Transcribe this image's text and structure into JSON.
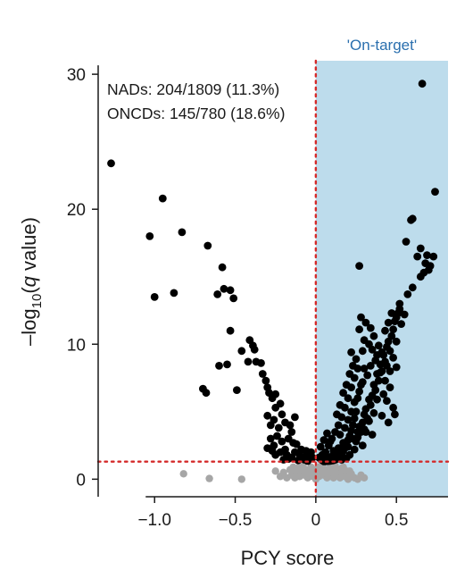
{
  "chart_data": {
    "type": "scatter",
    "xlabel": "PCY score",
    "ylabel_parts": {
      "pre": "–log",
      "sub": "10",
      "open": "(",
      "q": "q",
      "post": " value)"
    },
    "xlim": [
      -1.35,
      0.82
    ],
    "ylim": [
      -1.3,
      31
    ],
    "xticks": [
      -1.0,
      -0.5,
      0,
      0.5
    ],
    "xtick_labels": [
      "−1.0",
      "−0.5",
      "0",
      "0.5"
    ],
    "yticks": [
      0,
      10,
      20,
      30
    ],
    "ytick_labels": [
      "0",
      "10",
      "20",
      "30"
    ],
    "region_label": "'On-target'",
    "region_x_start": 0,
    "threshold_x": 0,
    "threshold_y": 1.3,
    "annotations": [
      "NADs: 204/1809 (11.3%)",
      "ONCDs: 145/780 (18.6%)"
    ],
    "colors": {
      "significant": "#000000",
      "nonsignificant": "#a6a6a6",
      "region": "#bddcec",
      "threshold": "#d42a2a",
      "region_text": "#2a6fae"
    },
    "series": [
      {
        "key": "significant",
        "points": [
          [
            -1.27,
            23.4
          ],
          [
            -0.95,
            20.8
          ],
          [
            -1.03,
            18.0
          ],
          [
            -0.83,
            18.3
          ],
          [
            -0.67,
            17.3
          ],
          [
            -0.58,
            15.7
          ],
          [
            -0.53,
            14.0
          ],
          [
            -0.57,
            14.1
          ],
          [
            -0.51,
            13.4
          ],
          [
            -0.61,
            13.7
          ],
          [
            -1.0,
            13.5
          ],
          [
            -0.88,
            13.8
          ],
          [
            -0.53,
            11.0
          ],
          [
            -0.6,
            8.4
          ],
          [
            -0.55,
            8.5
          ],
          [
            -0.46,
            9.5
          ],
          [
            -0.41,
            10.3
          ],
          [
            -0.39,
            9.9
          ],
          [
            -0.38,
            9.6
          ],
          [
            -0.42,
            8.7
          ],
          [
            -0.37,
            8.7
          ],
          [
            -0.34,
            8.6
          ],
          [
            -0.49,
            6.6
          ],
          [
            -0.7,
            6.7
          ],
          [
            -0.68,
            6.4
          ],
          [
            -0.33,
            7.8
          ],
          [
            -0.31,
            7.3
          ],
          [
            -0.3,
            6.8
          ],
          [
            -0.29,
            6.4
          ],
          [
            -0.27,
            6.0
          ],
          [
            -0.25,
            6.3
          ],
          [
            -0.3,
            4.7
          ],
          [
            -0.25,
            5.3
          ],
          [
            -0.22,
            5.6
          ],
          [
            -0.21,
            4.8
          ],
          [
            -0.26,
            4.4
          ],
          [
            -0.28,
            4.0
          ],
          [
            -0.23,
            3.8
          ],
          [
            -0.19,
            4.2
          ],
          [
            -0.24,
            3.2
          ],
          [
            -0.28,
            3.0
          ],
          [
            -0.21,
            2.8
          ],
          [
            -0.26,
            2.5
          ],
          [
            -0.3,
            2.3
          ],
          [
            -0.19,
            2.2
          ],
          [
            -0.17,
            3.0
          ],
          [
            -0.15,
            3.5
          ],
          [
            -0.14,
            2.7
          ],
          [
            -0.13,
            2.0
          ],
          [
            -0.12,
            2.6
          ],
          [
            -0.22,
            2.0
          ],
          [
            -0.18,
            1.8
          ],
          [
            -0.1,
            1.8
          ],
          [
            -0.09,
            2.2
          ],
          [
            -0.08,
            1.6
          ],
          [
            -0.06,
            2.1
          ],
          [
            -0.05,
            1.7
          ],
          [
            -0.04,
            1.5
          ],
          [
            -0.03,
            2.0
          ],
          [
            -0.15,
            1.6
          ],
          [
            -0.25,
            1.8
          ],
          [
            -0.27,
            2.1
          ],
          [
            -0.16,
            4.0
          ],
          [
            -0.13,
            4.6
          ],
          [
            -0.17,
            1.5
          ],
          [
            -0.11,
            1.4
          ],
          [
            -0.07,
            1.45
          ],
          [
            -0.02,
            1.6
          ],
          [
            -0.2,
            1.45
          ],
          [
            -0.05,
            1.35
          ],
          [
            0.66,
            29.3
          ],
          [
            0.74,
            21.3
          ],
          [
            0.6,
            19.3
          ],
          [
            0.59,
            19.2
          ],
          [
            0.56,
            17.6
          ],
          [
            0.65,
            17.1
          ],
          [
            0.69,
            16.6
          ],
          [
            0.73,
            16.5
          ],
          [
            0.68,
            16.0
          ],
          [
            0.71,
            15.8
          ],
          [
            0.7,
            15.5
          ],
          [
            0.67,
            15.3
          ],
          [
            0.63,
            16.5
          ],
          [
            0.65,
            15.0
          ],
          [
            0.6,
            14.2
          ],
          [
            0.57,
            13.7
          ],
          [
            0.52,
            12.6
          ],
          [
            0.51,
            12.3
          ],
          [
            0.5,
            12.0
          ],
          [
            0.49,
            11.7
          ],
          [
            0.53,
            11.5
          ],
          [
            0.48,
            11.1
          ],
          [
            0.47,
            10.6
          ],
          [
            0.45,
            10.2
          ],
          [
            0.44,
            9.8
          ],
          [
            0.46,
            9.5
          ],
          [
            0.42,
            9.2
          ],
          [
            0.43,
            8.7
          ],
          [
            0.4,
            8.5
          ],
          [
            0.41,
            8.0
          ],
          [
            0.38,
            7.8
          ],
          [
            0.39,
            7.3
          ],
          [
            0.36,
            7.0
          ],
          [
            0.37,
            6.6
          ],
          [
            0.35,
            6.2
          ],
          [
            0.33,
            5.9
          ],
          [
            0.34,
            5.5
          ],
          [
            0.31,
            5.2
          ],
          [
            0.3,
            4.8
          ],
          [
            0.32,
            4.5
          ],
          [
            0.29,
            4.2
          ],
          [
            0.27,
            3.9
          ],
          [
            0.28,
            3.5
          ],
          [
            0.26,
            3.1
          ],
          [
            0.25,
            2.8
          ],
          [
            0.27,
            15.8
          ],
          [
            0.29,
            9.5
          ],
          [
            0.3,
            8.2
          ],
          [
            0.28,
            7.0
          ],
          [
            0.26,
            6.0
          ],
          [
            0.25,
            5.0
          ],
          [
            0.24,
            4.5
          ],
          [
            0.23,
            4.0
          ],
          [
            0.22,
            3.6
          ],
          [
            0.21,
            3.2
          ],
          [
            0.2,
            2.9
          ],
          [
            0.19,
            2.6
          ],
          [
            0.18,
            2.3
          ],
          [
            0.17,
            2.1
          ],
          [
            0.16,
            1.9
          ],
          [
            0.15,
            1.7
          ],
          [
            0.14,
            1.6
          ],
          [
            0.13,
            1.5
          ],
          [
            0.12,
            1.45
          ],
          [
            0.11,
            1.4
          ],
          [
            0.1,
            1.38
          ],
          [
            0.09,
            1.36
          ],
          [
            0.08,
            1.35
          ],
          [
            0.07,
            1.34
          ],
          [
            0.06,
            1.33
          ],
          [
            0.05,
            1.32
          ],
          [
            0.04,
            1.4
          ],
          [
            0.03,
            1.5
          ],
          [
            0.02,
            1.6
          ],
          [
            0.06,
            2.0
          ],
          [
            0.08,
            2.5
          ],
          [
            0.1,
            3.0
          ],
          [
            0.12,
            3.5
          ],
          [
            0.14,
            4.0
          ],
          [
            0.16,
            4.6
          ],
          [
            0.18,
            5.3
          ],
          [
            0.2,
            6.0
          ],
          [
            0.22,
            6.8
          ],
          [
            0.24,
            7.5
          ],
          [
            0.26,
            8.2
          ],
          [
            0.22,
            9.4
          ],
          [
            0.25,
            8.9
          ],
          [
            0.27,
            11.1
          ],
          [
            0.3,
            10.3
          ],
          [
            0.33,
            10.0
          ],
          [
            0.35,
            9.6
          ],
          [
            0.37,
            8.8
          ],
          [
            0.4,
            7.9
          ],
          [
            0.43,
            7.3
          ],
          [
            0.46,
            6.8
          ],
          [
            0.44,
            5.8
          ],
          [
            0.48,
            5.3
          ],
          [
            0.41,
            4.7
          ],
          [
            0.45,
            4.2
          ],
          [
            0.49,
            4.8
          ],
          [
            0.35,
            3.3
          ],
          [
            0.31,
            3.5
          ],
          [
            0.29,
            2.5
          ],
          [
            0.24,
            2.2
          ],
          [
            0.21,
            1.8
          ],
          [
            0.19,
            1.55
          ],
          [
            0.16,
            1.45
          ],
          [
            0.13,
            1.7
          ],
          [
            0.11,
            2.1
          ],
          [
            0.09,
            2.8
          ],
          [
            0.07,
            3.4
          ],
          [
            0.13,
            4.8
          ],
          [
            0.15,
            5.5
          ],
          [
            0.17,
            6.4
          ],
          [
            0.19,
            7.0
          ],
          [
            0.21,
            7.8
          ],
          [
            0.23,
            8.4
          ],
          [
            0.28,
            12.0
          ],
          [
            0.31,
            11.6
          ],
          [
            0.34,
            11.2
          ],
          [
            0.36,
            10.6
          ],
          [
            0.39,
            9.9
          ],
          [
            0.43,
            11.0
          ],
          [
            0.45,
            11.6
          ],
          [
            0.47,
            12.3
          ],
          [
            0.52,
            13.0
          ],
          [
            0.55,
            12.2
          ],
          [
            0.5,
            10.2
          ],
          [
            0.48,
            9.0
          ],
          [
            0.5,
            8.3
          ],
          [
            0.46,
            8.0
          ],
          [
            0.42,
            6.3
          ],
          [
            0.38,
            5.9
          ],
          [
            0.36,
            4.9
          ],
          [
            0.33,
            4.3
          ],
          [
            0.3,
            3.7
          ],
          [
            0.26,
            3.5
          ],
          [
            0.23,
            3.0
          ],
          [
            0.2,
            2.4
          ],
          [
            0.17,
            2.7
          ],
          [
            0.14,
            2.3
          ],
          [
            0.12,
            2.0
          ],
          [
            0.1,
            1.7
          ],
          [
            0.08,
            1.6
          ],
          [
            0.06,
            1.55
          ],
          [
            0.04,
            1.8
          ],
          [
            0.03,
            2.4
          ],
          [
            0.05,
            2.9
          ],
          [
            0.15,
            3.3
          ],
          [
            0.18,
            3.8
          ],
          [
            0.2,
            4.4
          ],
          [
            0.22,
            5.0
          ],
          [
            0.24,
            5.7
          ],
          [
            0.27,
            6.5
          ],
          [
            0.29,
            7.2
          ],
          [
            0.32,
            7.7
          ],
          [
            0.34,
            8.4
          ],
          [
            0.38,
            9.2
          ],
          [
            0.41,
            9.4
          ],
          [
            0.44,
            8.4
          ]
        ]
      },
      {
        "key": "nonsignificant",
        "points": [
          [
            -0.82,
            0.4
          ],
          [
            -0.66,
            0.05
          ],
          [
            -0.46,
            0.0
          ],
          [
            -0.25,
            0.6
          ],
          [
            -0.22,
            0.2
          ],
          [
            -0.2,
            0.5
          ],
          [
            -0.18,
            0.1
          ],
          [
            -0.16,
            0.7
          ],
          [
            -0.15,
            0.3
          ],
          [
            -0.14,
            0.9
          ],
          [
            -0.13,
            0.1
          ],
          [
            -0.12,
            0.5
          ],
          [
            -0.11,
            0.8
          ],
          [
            -0.1,
            0.2
          ],
          [
            -0.09,
            0.6
          ],
          [
            -0.08,
            1.0
          ],
          [
            -0.07,
            0.3
          ],
          [
            -0.06,
            0.7
          ],
          [
            -0.05,
            0.1
          ],
          [
            -0.04,
            0.5
          ],
          [
            -0.03,
            0.9
          ],
          [
            -0.02,
            0.2
          ],
          [
            -0.01,
            0.6
          ],
          [
            0.0,
            0.0
          ],
          [
            0.0,
            0.4
          ],
          [
            0.01,
            0.8
          ],
          [
            0.02,
            0.2
          ],
          [
            0.03,
            0.6
          ],
          [
            0.04,
            1.0
          ],
          [
            0.05,
            0.3
          ],
          [
            0.06,
            0.7
          ],
          [
            0.07,
            0.1
          ],
          [
            0.08,
            0.5
          ],
          [
            0.09,
            0.9
          ],
          [
            0.1,
            0.2
          ],
          [
            0.11,
            0.6
          ],
          [
            0.12,
            1.0
          ],
          [
            0.13,
            0.3
          ],
          [
            0.14,
            0.7
          ],
          [
            0.15,
            0.1
          ],
          [
            0.16,
            0.5
          ],
          [
            0.17,
            0.9
          ],
          [
            0.18,
            0.2
          ],
          [
            0.19,
            0.6
          ],
          [
            0.2,
            0.0
          ],
          [
            0.22,
            0.4
          ],
          [
            0.24,
            0.1
          ],
          [
            0.26,
            0.0
          ],
          [
            0.28,
            0.3
          ],
          [
            0.3,
            0.1
          ],
          [
            -0.03,
            0.3
          ],
          [
            0.02,
            0.9
          ],
          [
            0.07,
            0.4
          ],
          [
            -0.12,
            0.2
          ],
          [
            0.11,
            0.1
          ],
          [
            0.16,
            0.8
          ],
          [
            -0.07,
            0.5
          ],
          [
            0.21,
            0.6
          ],
          [
            0.05,
            0.55
          ],
          [
            -0.1,
            0.95
          ]
        ]
      }
    ]
  }
}
